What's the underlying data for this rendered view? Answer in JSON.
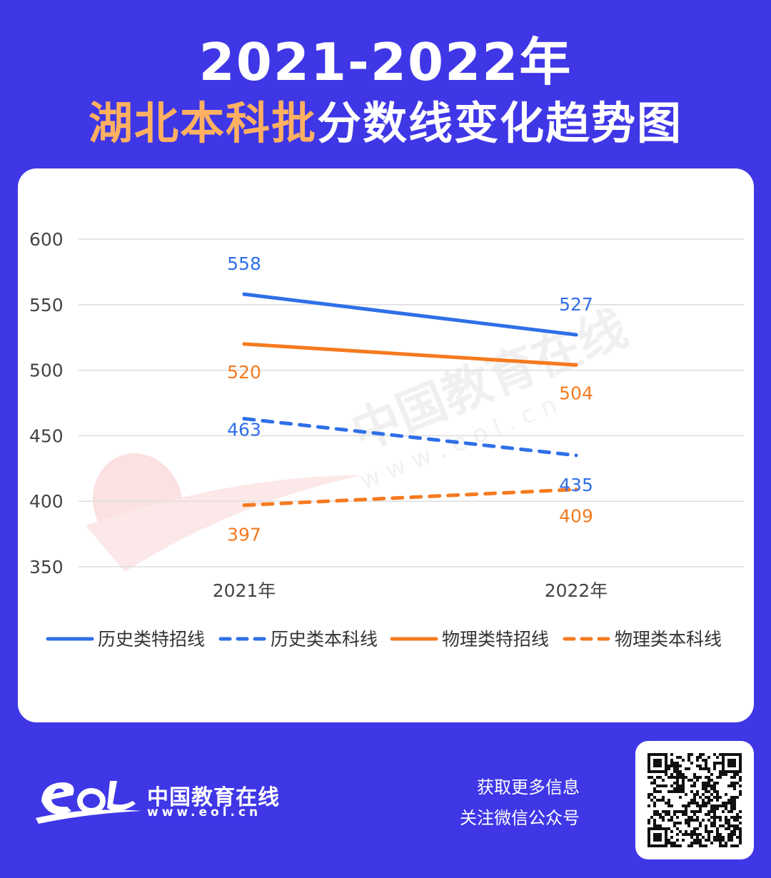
{
  "header": {
    "title_line1": "2021-2022年",
    "title_line2_highlight": "湖北本科批",
    "title_line2_rest": "分数线变化趋势图"
  },
  "chart_data": {
    "type": "line",
    "x": [
      "2021年",
      "2022年"
    ],
    "ylim": [
      350,
      600
    ],
    "yticks": [
      350,
      400,
      450,
      500,
      550,
      600
    ],
    "grid": true,
    "legend_position": "bottom",
    "series": [
      {
        "name": "历史类特招线",
        "values": [
          558,
          527
        ],
        "color": "#2f6fe8",
        "style": "solid"
      },
      {
        "name": "历史类本科线",
        "values": [
          463,
          435
        ],
        "color": "#2f6fe8",
        "style": "dashed"
      },
      {
        "name": "物理类特招线",
        "values": [
          520,
          504
        ],
        "color": "#f57a1f",
        "style": "solid"
      },
      {
        "name": "物理类本科线",
        "values": [
          397,
          409
        ],
        "color": "#f57a1f",
        "style": "dashed"
      }
    ]
  },
  "watermark": {
    "text": "中国教育在线",
    "url": "w w w . e o l . c n"
  },
  "footer": {
    "brand": "中国教育在线",
    "url": "www.eol.cn",
    "info_line1": "获取更多信息",
    "info_line2": "关注微信公众号"
  },
  "colors": {
    "background": "#3f37e6",
    "highlight": "#ffb061",
    "blue_series": "#2f6fe8",
    "orange_series": "#f57a1f"
  }
}
